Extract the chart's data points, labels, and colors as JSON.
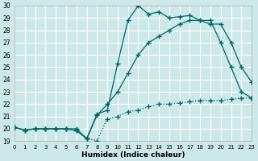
{
  "xlabel": "Humidex (Indice chaleur)",
  "bg_color": "#cce8e8",
  "grid_color": "#b8d8d8",
  "line_color": "#006666",
  "xlim": [
    0,
    23
  ],
  "ylim": [
    19,
    30
  ],
  "xticks": [
    0,
    1,
    2,
    3,
    4,
    5,
    6,
    7,
    8,
    9,
    10,
    11,
    12,
    13,
    14,
    15,
    16,
    17,
    18,
    19,
    20,
    21,
    22,
    23
  ],
  "yticks": [
    19,
    20,
    21,
    22,
    23,
    24,
    25,
    26,
    27,
    28,
    29,
    30
  ],
  "line1_x": [
    0,
    1,
    2,
    3,
    4,
    5,
    6,
    7,
    8,
    9,
    10,
    11,
    12,
    13,
    14,
    15,
    16,
    17,
    18,
    19,
    20,
    21,
    22,
    23
  ],
  "line1_y": [
    20.1,
    19.9,
    20.0,
    20.0,
    20.0,
    20.0,
    19.85,
    19.2,
    19.05,
    20.8,
    21.0,
    21.4,
    21.5,
    21.8,
    22.0,
    22.0,
    22.1,
    22.2,
    22.3,
    22.3,
    22.3,
    22.4,
    22.5,
    22.5
  ],
  "line2_x": [
    0,
    1,
    2,
    3,
    4,
    5,
    6,
    7,
    8,
    9,
    10,
    11,
    12,
    13,
    14,
    15,
    16,
    17,
    18,
    19,
    20,
    21,
    22,
    23
  ],
  "line2_y": [
    20.1,
    19.9,
    20.0,
    20.0,
    20.0,
    20.0,
    20.0,
    19.2,
    21.1,
    22.0,
    23.0,
    24.5,
    26.0,
    27.0,
    27.5,
    28.0,
    28.5,
    28.8,
    28.8,
    28.8,
    27.0,
    25.0,
    23.0,
    22.5
  ],
  "line3_x": [
    0,
    1,
    2,
    3,
    4,
    5,
    6,
    7,
    8,
    9,
    10,
    11,
    12,
    13,
    14,
    15,
    16,
    17,
    18,
    19,
    20,
    21,
    22,
    23
  ],
  "line3_y": [
    20.1,
    19.9,
    20.0,
    20.0,
    20.0,
    20.0,
    19.85,
    19.2,
    21.2,
    21.5,
    25.3,
    28.8,
    30.0,
    29.3,
    29.5,
    29.0,
    29.1,
    29.2,
    28.8,
    28.5,
    28.5,
    27.0,
    25.0,
    23.8
  ]
}
